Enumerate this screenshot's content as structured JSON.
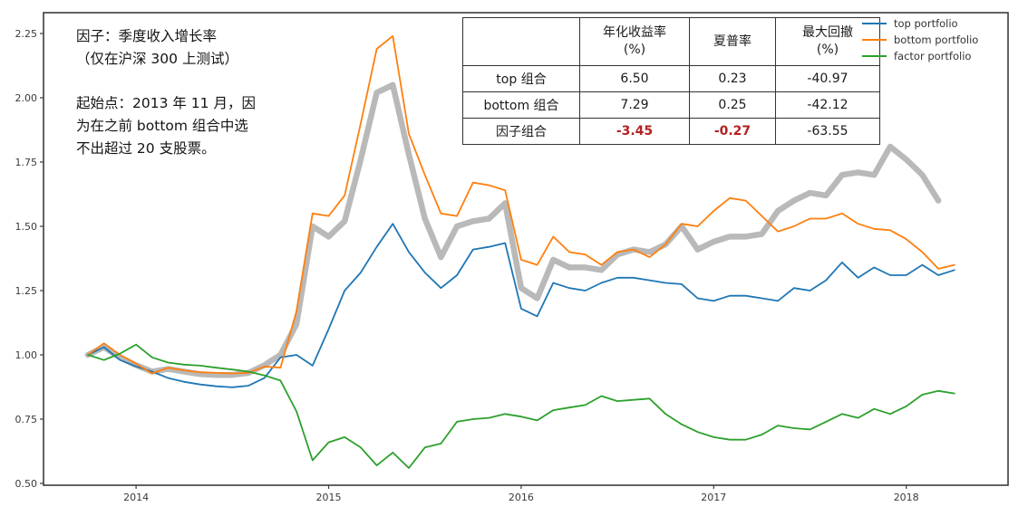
{
  "annotation": {
    "para1": "因子：季度收入增长率\n（仅在沪深 300 上测试）",
    "para2": "起始点：2013 年 11 月，因\n为在之前 bottom 组合中选\n不出超过 20 支股票。"
  },
  "table": {
    "corner_label": "",
    "headers": [
      "年化收益率\n(%)",
      "夏普率",
      "最大回撤\n(%)"
    ],
    "rows": [
      {
        "label": "top 组合",
        "values": [
          "6.50",
          "0.23",
          "-40.97"
        ],
        "highlight": [
          false,
          false,
          false
        ]
      },
      {
        "label": "bottom 组合",
        "values": [
          "7.29",
          "0.25",
          "-42.12"
        ],
        "highlight": [
          false,
          false,
          false
        ]
      },
      {
        "label": "因子组合",
        "values": [
          "-3.45",
          "-0.27",
          "-63.55"
        ],
        "highlight": [
          true,
          true,
          false
        ]
      }
    ],
    "highlight_color": "#b22222"
  },
  "chart_data": {
    "type": "line",
    "title": "",
    "xlabel": "",
    "ylabel": "",
    "x_range_months": [
      "2013-10",
      "2018-04"
    ],
    "x_tick_labels": [
      "2014",
      "2015",
      "2016",
      "2017",
      "2018"
    ],
    "x_tick_month_indices": [
      3,
      15,
      27,
      39,
      51
    ],
    "y_ticks": [
      0.5,
      0.75,
      1.0,
      1.25,
      1.5,
      1.75,
      2.0,
      2.25
    ],
    "ylim": [
      0.493,
      2.331
    ],
    "grid": false,
    "legend_position": "upper right",
    "legend": [
      {
        "label": "top portfolio",
        "color": "#1f77b4"
      },
      {
        "label": "bottom portfolio",
        "color": "#ff7f0e"
      },
      {
        "label": "factor portfolio",
        "color": "#2ca02c"
      }
    ],
    "series": [
      {
        "id": "benchmark-gray",
        "name": "",
        "color": "#b9b9b9",
        "width": 6.5,
        "in_legend": false,
        "values": [
          1.0,
          1.03,
          0.99,
          0.96,
          0.935,
          0.945,
          0.935,
          0.925,
          0.922,
          0.922,
          0.93,
          0.96,
          1.0,
          1.12,
          1.5,
          1.46,
          1.52,
          1.76,
          2.02,
          2.05,
          1.78,
          1.53,
          1.38,
          1.5,
          1.52,
          1.53,
          1.59,
          1.26,
          1.22,
          1.37,
          1.34,
          1.34,
          1.33,
          1.39,
          1.41,
          1.4,
          1.43,
          1.5,
          1.41,
          1.44,
          1.46,
          1.46,
          1.47,
          1.56,
          1.6,
          1.63,
          1.62,
          1.7,
          1.71,
          1.7,
          1.81,
          1.76,
          1.7,
          1.6,
          null
        ]
      },
      {
        "id": "top-portfolio",
        "name": "top portfolio",
        "color": "#1f77b4",
        "width": 1.8,
        "in_legend": true,
        "values": [
          1.0,
          1.03,
          0.98,
          0.955,
          0.935,
          0.91,
          0.895,
          0.885,
          0.878,
          0.874,
          0.88,
          0.91,
          0.99,
          1.0,
          0.958,
          1.1,
          1.25,
          1.32,
          1.42,
          1.51,
          1.4,
          1.32,
          1.26,
          1.31,
          1.41,
          1.42,
          1.435,
          1.18,
          1.15,
          1.28,
          1.26,
          1.25,
          1.28,
          1.3,
          1.3,
          1.29,
          1.28,
          1.275,
          1.22,
          1.21,
          1.23,
          1.23,
          1.22,
          1.21,
          1.26,
          1.25,
          1.29,
          1.36,
          1.3,
          1.34,
          1.31,
          1.31,
          1.35,
          1.31,
          1.33
        ]
      },
      {
        "id": "bottom-portfolio",
        "name": "bottom portfolio",
        "color": "#ff7f0e",
        "width": 1.8,
        "in_legend": true,
        "values": [
          1.0,
          1.045,
          1.0,
          0.965,
          0.928,
          0.95,
          0.94,
          0.932,
          0.93,
          0.928,
          0.93,
          0.955,
          0.95,
          1.17,
          1.55,
          1.54,
          1.62,
          1.9,
          2.19,
          2.24,
          1.86,
          1.7,
          1.55,
          1.54,
          1.67,
          1.66,
          1.64,
          1.37,
          1.35,
          1.46,
          1.4,
          1.39,
          1.35,
          1.4,
          1.41,
          1.38,
          1.43,
          1.51,
          1.5,
          1.56,
          1.61,
          1.6,
          1.54,
          1.48,
          1.5,
          1.53,
          1.53,
          1.55,
          1.51,
          1.49,
          1.485,
          1.45,
          1.4,
          1.335,
          1.35
        ]
      },
      {
        "id": "factor-portfolio",
        "name": "factor portfolio",
        "color": "#2ca02c",
        "width": 1.8,
        "in_legend": true,
        "values": [
          1.0,
          0.98,
          1.005,
          1.04,
          0.99,
          0.97,
          0.962,
          0.958,
          0.95,
          0.943,
          0.935,
          0.92,
          0.9,
          0.78,
          0.59,
          0.66,
          0.68,
          0.64,
          0.57,
          0.62,
          0.56,
          0.64,
          0.655,
          0.74,
          0.75,
          0.755,
          0.77,
          0.76,
          0.745,
          0.785,
          0.795,
          0.805,
          0.84,
          0.82,
          0.825,
          0.83,
          0.77,
          0.73,
          0.7,
          0.68,
          0.67,
          0.67,
          0.69,
          0.725,
          0.715,
          0.71,
          0.74,
          0.77,
          0.755,
          0.79,
          0.77,
          0.8,
          0.845,
          0.86,
          0.85
        ]
      }
    ]
  }
}
